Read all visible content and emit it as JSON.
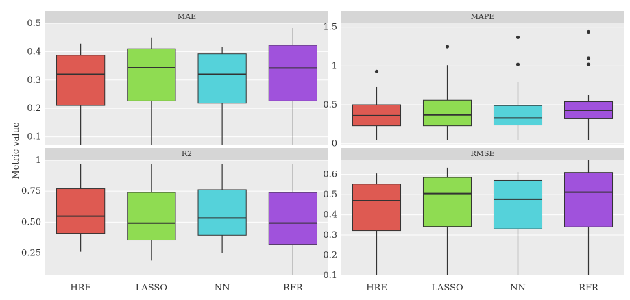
{
  "chart_data": {
    "type": "boxplot",
    "ylabel": "Metric value",
    "categories": [
      "HRE",
      "LASSO",
      "NN",
      "RFR"
    ],
    "colors": {
      "HRE": "#de5a52",
      "LASSO": "#8fdc52",
      "NN": "#55d2da",
      "RFR": "#a052dc"
    },
    "panels": [
      {
        "title": "MAE",
        "ylim": [
          0.07,
          0.5
        ],
        "yticks": [
          0.1,
          0.2,
          0.3,
          0.4,
          0.5
        ],
        "ytick_labels": [
          "0.1",
          "0.2",
          "0.3",
          "0.4",
          "0.5"
        ],
        "boxes": [
          {
            "category": "HRE",
            "whisker_low": 0.07,
            "q1": 0.21,
            "median": 0.32,
            "q3": 0.387,
            "whisker_high": 0.428,
            "outliers": []
          },
          {
            "category": "LASSO",
            "whisker_low": 0.07,
            "q1": 0.226,
            "median": 0.343,
            "q3": 0.41,
            "whisker_high": 0.45,
            "outliers": []
          },
          {
            "category": "NN",
            "whisker_low": 0.07,
            "q1": 0.218,
            "median": 0.32,
            "q3": 0.392,
            "whisker_high": 0.418,
            "outliers": []
          },
          {
            "category": "RFR",
            "whisker_low": 0.07,
            "q1": 0.226,
            "median": 0.342,
            "q3": 0.423,
            "whisker_high": 0.483,
            "outliers": []
          }
        ]
      },
      {
        "title": "MAPE",
        "ylim": [
          -0.02,
          1.55
        ],
        "yticks": [
          0,
          0.5,
          1,
          1.5
        ],
        "ytick_labels": [
          "0",
          "0.5",
          "1",
          "1.5"
        ],
        "boxes": [
          {
            "category": "HRE",
            "whisker_low": 0.05,
            "q1": 0.23,
            "median": 0.36,
            "q3": 0.5,
            "whisker_high": 0.73,
            "outliers": [
              0.93
            ]
          },
          {
            "category": "LASSO",
            "whisker_low": 0.05,
            "q1": 0.23,
            "median": 0.37,
            "q3": 0.56,
            "whisker_high": 1.01,
            "outliers": [
              1.25
            ]
          },
          {
            "category": "NN",
            "whisker_low": 0.05,
            "q1": 0.24,
            "median": 0.33,
            "q3": 0.49,
            "whisker_high": 0.8,
            "outliers": [
              1.02,
              1.37
            ]
          },
          {
            "category": "RFR",
            "whisker_low": 0.05,
            "q1": 0.32,
            "median": 0.43,
            "q3": 0.54,
            "whisker_high": 0.63,
            "outliers": [
              1.02,
              1.1,
              1.44
            ]
          }
        ]
      },
      {
        "title": "R2",
        "ylim": [
          0.07,
          1.0
        ],
        "yticks": [
          0.25,
          0.5,
          0.75,
          1
        ],
        "ytick_labels": [
          "0.25",
          "0.50",
          "0.75",
          "1"
        ],
        "boxes": [
          {
            "category": "HRE",
            "whisker_low": 0.26,
            "q1": 0.41,
            "median": 0.548,
            "q3": 0.77,
            "whisker_high": 0.97,
            "outliers": []
          },
          {
            "category": "LASSO",
            "whisker_low": 0.19,
            "q1": 0.355,
            "median": 0.492,
            "q3": 0.74,
            "whisker_high": 0.97,
            "outliers": []
          },
          {
            "category": "NN",
            "whisker_low": 0.25,
            "q1": 0.395,
            "median": 0.533,
            "q3": 0.762,
            "whisker_high": 0.97,
            "outliers": []
          },
          {
            "category": "RFR",
            "whisker_low": 0.07,
            "q1": 0.32,
            "median": 0.493,
            "q3": 0.74,
            "whisker_high": 0.97,
            "outliers": []
          }
        ]
      },
      {
        "title": "RMSE",
        "ylim": [
          0.1,
          0.67
        ],
        "yticks": [
          0.1,
          0.2,
          0.3,
          0.4,
          0.5,
          0.6
        ],
        "ytick_labels": [
          "0.1",
          "0.2",
          "0.3",
          "0.4",
          "0.5",
          "0.6"
        ],
        "boxes": [
          {
            "category": "HRE",
            "whisker_low": 0.1,
            "q1": 0.322,
            "median": 0.47,
            "q3": 0.552,
            "whisker_high": 0.605,
            "outliers": []
          },
          {
            "category": "LASSO",
            "whisker_low": 0.1,
            "q1": 0.342,
            "median": 0.505,
            "q3": 0.585,
            "whisker_high": 0.633,
            "outliers": []
          },
          {
            "category": "NN",
            "whisker_low": 0.1,
            "q1": 0.33,
            "median": 0.477,
            "q3": 0.57,
            "whisker_high": 0.612,
            "outliers": []
          },
          {
            "category": "RFR",
            "whisker_low": 0.1,
            "q1": 0.34,
            "median": 0.512,
            "q3": 0.61,
            "whisker_high": 0.67,
            "outliers": []
          }
        ]
      }
    ]
  }
}
